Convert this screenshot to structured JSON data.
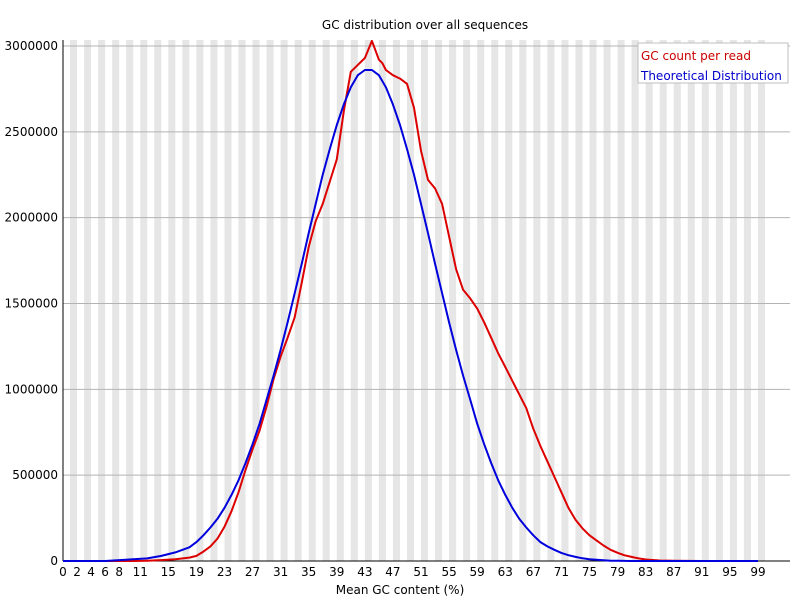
{
  "chart_data": {
    "type": "line",
    "title": "GC distribution over all sequences",
    "xlabel": "Mean GC content (%)",
    "ylabel": "",
    "xlim": [
      0,
      100
    ],
    "ylim": [
      0,
      3000000
    ],
    "y_ticks": [
      0,
      500000,
      1000000,
      1500000,
      2000000,
      2500000,
      3000000
    ],
    "y_tick_labels": [
      "0",
      "500000",
      "1000000",
      "1500000",
      "2000000",
      "2500000",
      "3000000"
    ],
    "x_tick_labels": [
      "0",
      "2",
      "4",
      "6",
      "8",
      "11",
      "15",
      "19",
      "23",
      "27",
      "31",
      "35",
      "39",
      "43",
      "47",
      "51",
      "55",
      "59",
      "63",
      "67",
      "71",
      "75",
      "79",
      "83",
      "87",
      "91",
      "95",
      "99"
    ],
    "x_tick_values": [
      0,
      2,
      4,
      6,
      8,
      11,
      15,
      19,
      23,
      27,
      31,
      35,
      39,
      43,
      47,
      51,
      55,
      59,
      63,
      67,
      71,
      75,
      79,
      83,
      87,
      91,
      95,
      99
    ],
    "legend": {
      "position": "top-right",
      "entries": [
        {
          "label": "GC count per read",
          "color": "#cc0000"
        },
        {
          "label": "Theoretical Distribution",
          "color": "#0000cc"
        }
      ]
    },
    "colors": {
      "band": "#e6e6e6",
      "grid": "#b3b3b3",
      "observed": "#dd0000",
      "theoretical": "#0000dd"
    },
    "series": [
      {
        "name": "GC count per read",
        "x": [
          0,
          2,
          4,
          6,
          8,
          10,
          12,
          14,
          16,
          18,
          19,
          20,
          21,
          22,
          23,
          24,
          25,
          26,
          27,
          28,
          29,
          30,
          31,
          32,
          33,
          34,
          35,
          36,
          37,
          38,
          39,
          40,
          41,
          42,
          43,
          44,
          45,
          45.5,
          46,
          47,
          48,
          49,
          50,
          51,
          52,
          53,
          54,
          55,
          56,
          57,
          58,
          59,
          60,
          61,
          62,
          63,
          64,
          65,
          66,
          67,
          68,
          69,
          70,
          71,
          72,
          73,
          74,
          75,
          76,
          77,
          78,
          79,
          80,
          81,
          82,
          83,
          84,
          85,
          87,
          89,
          91,
          93,
          95,
          97,
          99
        ],
        "values": [
          0,
          0,
          0,
          0,
          0,
          0,
          2000,
          5000,
          10000,
          20000,
          30000,
          55000,
          85000,
          130000,
          200000,
          290000,
          400000,
          530000,
          650000,
          760000,
          900000,
          1060000,
          1190000,
          1300000,
          1420000,
          1620000,
          1830000,
          1980000,
          2080000,
          2210000,
          2340000,
          2620000,
          2850000,
          2890000,
          2930000,
          3030000,
          2920000,
          2900000,
          2860000,
          2830000,
          2810000,
          2780000,
          2640000,
          2390000,
          2220000,
          2170000,
          2080000,
          1890000,
          1700000,
          1580000,
          1530000,
          1470000,
          1390000,
          1300000,
          1210000,
          1130000,
          1050000,
          970000,
          890000,
          770000,
          670000,
          580000,
          490000,
          400000,
          310000,
          240000,
          190000,
          150000,
          120000,
          90000,
          65000,
          48000,
          33000,
          24000,
          15000,
          9000,
          6000,
          3000,
          1000,
          500,
          0,
          0,
          0,
          0,
          0
        ]
      },
      {
        "name": "Theoretical Distribution",
        "x": [
          0,
          2,
          4,
          6,
          8,
          10,
          12,
          14,
          16,
          18,
          19,
          20,
          21,
          22,
          23,
          24,
          25,
          26,
          27,
          28,
          29,
          30,
          31,
          32,
          33,
          34,
          35,
          36,
          37,
          38,
          39,
          40,
          41,
          42,
          43,
          44,
          45,
          46,
          47,
          48,
          49,
          50,
          51,
          52,
          53,
          54,
          55,
          56,
          57,
          58,
          59,
          60,
          61,
          62,
          63,
          64,
          65,
          66,
          67,
          68,
          69,
          70,
          71,
          72,
          73,
          74,
          75,
          76,
          77,
          78,
          79,
          80,
          81,
          82,
          83,
          84,
          85,
          87,
          89,
          91,
          93,
          95,
          97,
          99
        ],
        "values": [
          0,
          0,
          0,
          0,
          5000,
          10000,
          15000,
          30000,
          50000,
          80000,
          110000,
          150000,
          195000,
          245000,
          310000,
          385000,
          470000,
          570000,
          680000,
          800000,
          940000,
          1080000,
          1230000,
          1390000,
          1560000,
          1730000,
          1910000,
          2080000,
          2250000,
          2400000,
          2540000,
          2660000,
          2760000,
          2830000,
          2860000,
          2860000,
          2830000,
          2760000,
          2660000,
          2540000,
          2400000,
          2250000,
          2080000,
          1910000,
          1730000,
          1560000,
          1390000,
          1230000,
          1080000,
          940000,
          800000,
          680000,
          570000,
          470000,
          385000,
          310000,
          245000,
          195000,
          150000,
          110000,
          85000,
          65000,
          47000,
          34000,
          24000,
          16000,
          10000,
          7000,
          4000,
          2000,
          1000,
          500,
          0,
          0,
          0,
          0,
          0,
          0,
          0,
          0,
          0,
          0,
          0,
          0
        ]
      }
    ]
  }
}
